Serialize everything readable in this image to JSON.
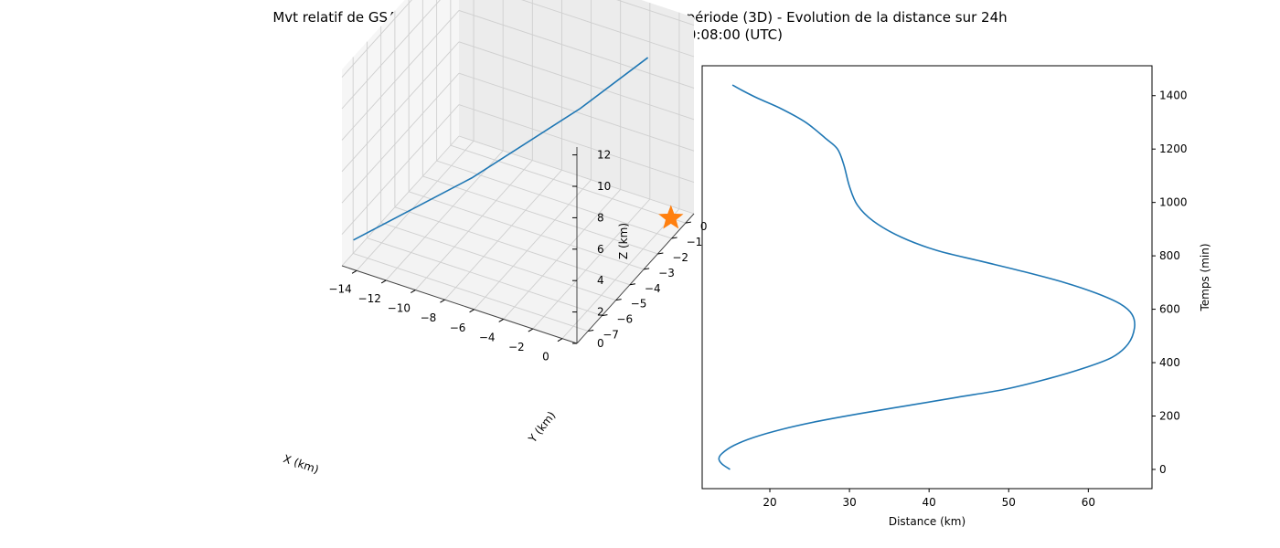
{
  "title_line1": "Mvt relatif de GSAT 10 (38779) vs GSAT 30 (45026) sur une période (3D) - Evolution de la distance sur 24h",
  "title_line2": "Date début = 03-04-2024 20:08:00 (UTC)",
  "colors": {
    "series": "#1f77b4",
    "marker": "#ff7f0e",
    "pane": "#f2f2f2",
    "grid": "#cccccc"
  },
  "chart_data": [
    {
      "type": "line",
      "projection": "3d",
      "xlabel": "X (km)",
      "ylabel": "Y (km)",
      "zlabel": "Z (km)",
      "xticks": [
        -14,
        -12,
        -10,
        -8,
        -6,
        -4,
        -2,
        0
      ],
      "yticks": [
        0,
        -1,
        -2,
        -3,
        -4,
        -5,
        -6,
        -7
      ],
      "zticks": [
        0,
        2,
        4,
        6,
        8,
        10,
        12
      ],
      "xlim": [
        -15,
        1
      ],
      "ylim": [
        -7.8,
        0.6
      ],
      "zlim": [
        0,
        12.5
      ],
      "grid": true,
      "series": [
        {
          "x": [
            -14.5,
            -9.0,
            -4.0,
            -1.0
          ],
          "y": [
            -7.5,
            -4.8,
            -2.3,
            -0.6
          ],
          "z": [
            1.5,
            4.5,
            8.0,
            10.5
          ]
        }
      ],
      "marker": {
        "shape": "star",
        "x": 0,
        "y": 0,
        "z": 0
      }
    },
    {
      "type": "line",
      "xlabel": "Distance (km)",
      "ylabel": "Temps (min)",
      "xticks": [
        20,
        30,
        40,
        50,
        60
      ],
      "yticks": [
        0,
        200,
        400,
        600,
        800,
        1000,
        1200,
        1400
      ],
      "xlim": [
        11.5,
        68.0
      ],
      "ylim": [
        -72,
        1512
      ],
      "yaxis_position": "right",
      "grid": false,
      "series": [
        {
          "distance": [
            15.0,
            14.0,
            13.6,
            14.0,
            15.5,
            18.0,
            21.5,
            26.0,
            31.5,
            37.5,
            43.5,
            49.5,
            55.0,
            59.5,
            63.0,
            65.0,
            65.8,
            65.5,
            64.0,
            61.0,
            57.0,
            52.0,
            46.5,
            41.0,
            36.5,
            33.0,
            31.0,
            30.0,
            29.3,
            28.5,
            27.0,
            24.5,
            21.5,
            18.5,
            16.5,
            15.3
          ],
          "time": [
            0,
            20,
            40,
            60,
            90,
            120,
            150,
            180,
            210,
            240,
            270,
            300,
            340,
            380,
            420,
            470,
            530,
            580,
            620,
            660,
            700,
            740,
            780,
            820,
            870,
            930,
            990,
            1060,
            1140,
            1200,
            1240,
            1300,
            1350,
            1390,
            1420,
            1440
          ]
        }
      ]
    }
  ]
}
